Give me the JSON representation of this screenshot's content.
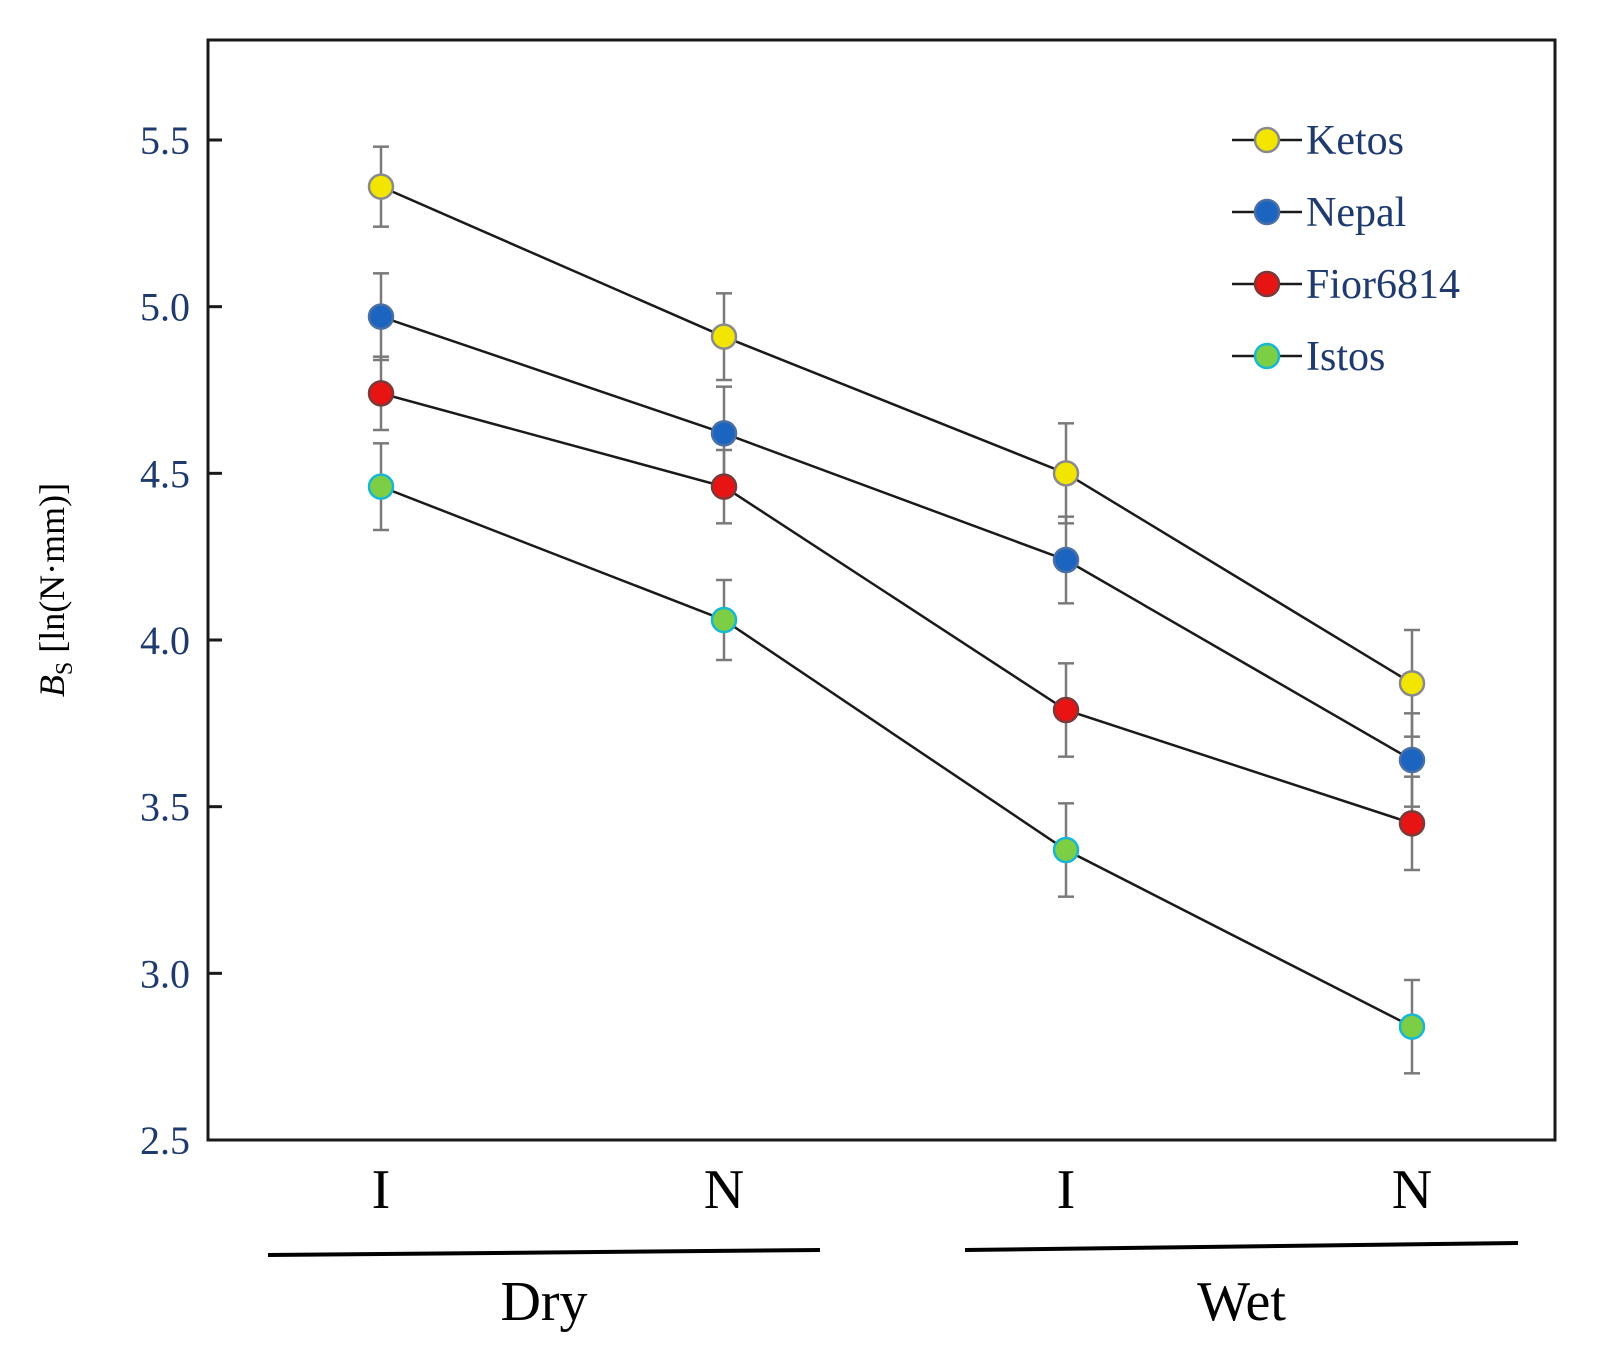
{
  "chart_data": {
    "type": "line",
    "title": "",
    "ylabel_main": "B",
    "ylabel_sub": "S",
    "ylabel_unit": " [ln(N·mm)]",
    "xlabel": "",
    "ylim": [
      2.5,
      5.8
    ],
    "yticks": [
      "2.5",
      "3.0",
      "3.5",
      "4.0",
      "4.5",
      "5.0",
      "5.5"
    ],
    "ytick_values": [
      2.5,
      3.0,
      3.5,
      4.0,
      4.5,
      5.0,
      5.5
    ],
    "categories": [
      "I",
      "N",
      "I",
      "N"
    ],
    "groups": [
      {
        "label": "Dry",
        "categories": [
          0,
          1
        ]
      },
      {
        "label": "Wet",
        "categories": [
          2,
          3
        ]
      }
    ],
    "grid": false,
    "legend_position": "top-right",
    "series": [
      {
        "name": "Ketos",
        "fill": "#f2e600",
        "edge": "#8a8a8a",
        "values": [
          5.36,
          4.91,
          4.5,
          3.87
        ],
        "err": [
          0.12,
          0.13,
          0.15,
          0.16
        ]
      },
      {
        "name": "Nepal",
        "fill": "#1b64c0",
        "edge": "#4a6fa5",
        "values": [
          4.97,
          4.62,
          4.24,
          3.64
        ],
        "err": [
          0.13,
          0.14,
          0.13,
          0.14
        ]
      },
      {
        "name": "Fior6814",
        "fill": "#e81313",
        "edge": "#7a3a3a",
        "values": [
          4.74,
          4.46,
          3.79,
          3.45
        ],
        "err": [
          0.11,
          0.11,
          0.14,
          0.14
        ]
      },
      {
        "name": "Istos",
        "fill": "#7ccf45",
        "edge": "#19b6d4",
        "values": [
          4.46,
          4.06,
          3.37,
          2.84
        ],
        "err": [
          0.13,
          0.12,
          0.14,
          0.14
        ]
      }
    ]
  }
}
